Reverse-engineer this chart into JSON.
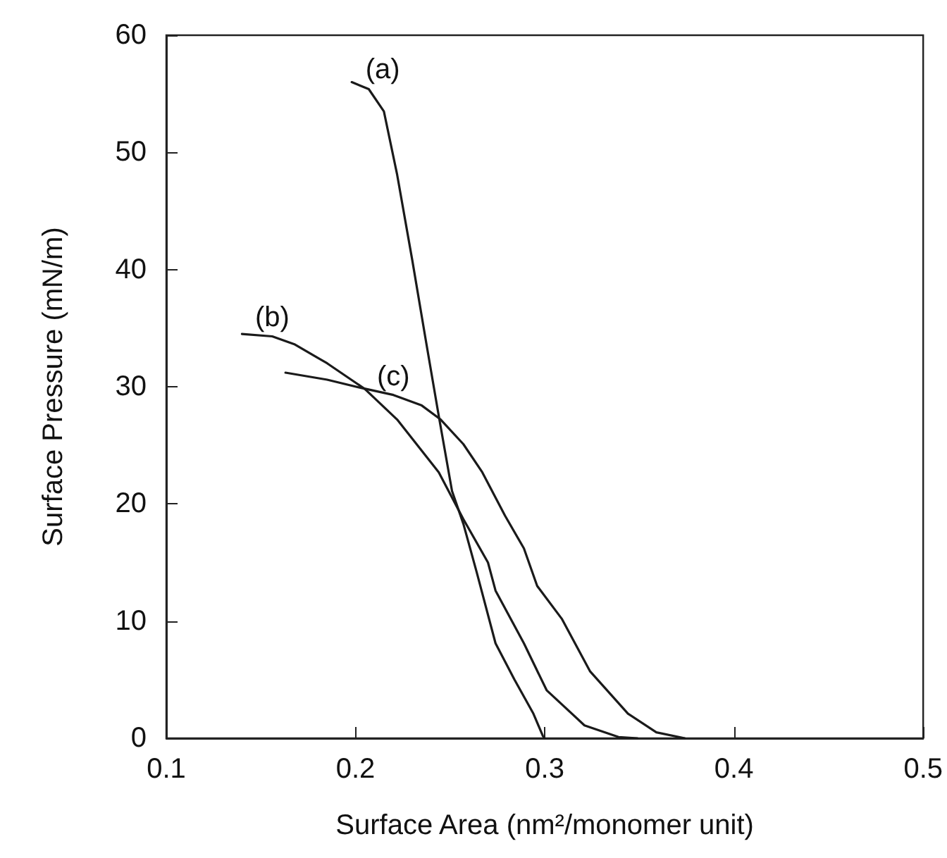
{
  "chart_data": {
    "type": "line",
    "xlabel": "Surface Area (nm²/monomer unit)",
    "ylabel": "Surface Pressure (mN/m)",
    "xlim": [
      0.1,
      0.5
    ],
    "xticks": [
      0.1,
      0.2,
      0.3,
      0.4,
      0.5
    ],
    "ylim": [
      0,
      60
    ],
    "yticks": [
      0,
      10,
      20,
      30,
      40,
      50,
      60
    ],
    "grid": false,
    "marker": "none",
    "line_style": "solid",
    "series": [
      {
        "name": "(a)",
        "color": "#1a1a1a",
        "x": [
          0.198,
          0.207,
          0.215,
          0.222,
          0.23,
          0.237,
          0.244,
          0.251,
          0.257,
          0.264,
          0.274,
          0.284,
          0.294,
          0.299,
          0.3
        ],
        "values": [
          56.0,
          55.4,
          53.5,
          48.1,
          40.8,
          34.1,
          27.5,
          21.1,
          18.3,
          14.2,
          8.1,
          5.0,
          2.1,
          0.2,
          0
        ]
      },
      {
        "name": "(b)",
        "color": "#1a1a1a",
        "x": [
          0.14,
          0.156,
          0.168,
          0.185,
          0.205,
          0.222,
          0.244,
          0.257,
          0.27,
          0.274,
          0.289,
          0.301,
          0.321,
          0.339,
          0.349
        ],
        "values": [
          34.5,
          34.3,
          33.6,
          32.0,
          29.8,
          27.2,
          22.7,
          18.7,
          15.0,
          12.6,
          8.1,
          4.1,
          1.1,
          0.1,
          0
        ]
      },
      {
        "name": "(c)",
        "color": "#1a1a1a",
        "x": [
          0.163,
          0.185,
          0.203,
          0.22,
          0.235,
          0.245,
          0.257,
          0.267,
          0.279,
          0.289,
          0.296,
          0.309,
          0.324,
          0.344,
          0.359,
          0.374
        ],
        "values": [
          31.2,
          30.6,
          29.9,
          29.3,
          28.4,
          27.2,
          25.1,
          22.7,
          19.0,
          16.2,
          13.0,
          10.2,
          5.7,
          2.1,
          0.5,
          0
        ]
      }
    ]
  }
}
